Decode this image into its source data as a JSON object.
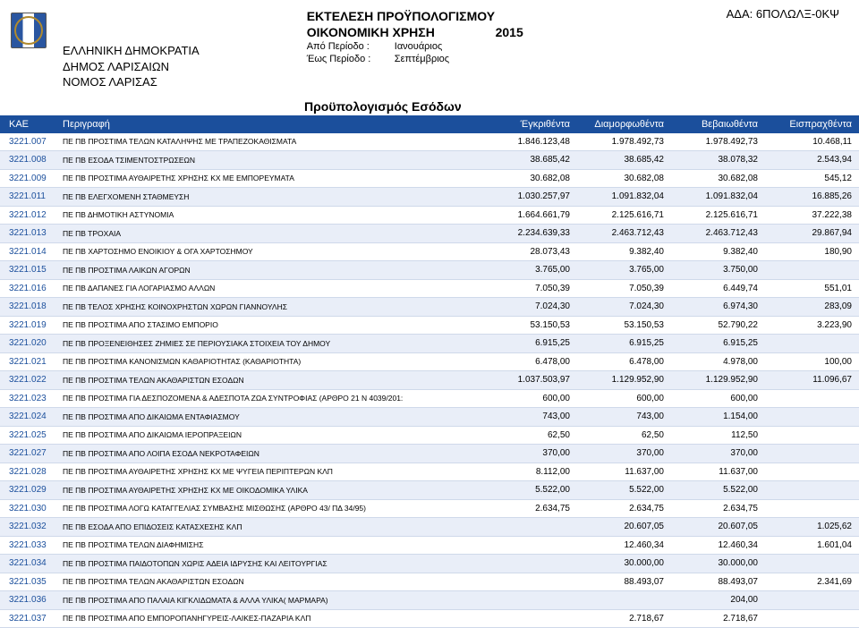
{
  "ada_label": "ΑΔΑ: 6ΠΟΛΩΛΞ-0ΚΨ",
  "gov": {
    "line1": "ΕΛΛΗΝΙΚΗ ΔΗΜΟΚΡΑΤΙΑ",
    "line2": "ΔΗΜΟΣ ΛΑΡΙΣΑΙΩΝ",
    "line3": "ΝΟΜΟΣ ΛΑΡΙΣΑΣ"
  },
  "titles": {
    "t1": "ΕΚΤΕΛΕΣΗ ΠΡΟΫΠΟΛΟΓΙΣΜΟΥ",
    "t2_a": "ΟΙΚΟΝΟΜΙΚΗ ΧΡΗΣΗ",
    "t2_b": "2015",
    "from_lbl": "Από Περίοδο :",
    "from_val": "Ιανουάριος",
    "to_lbl": "Έως Περίοδο :",
    "to_val": "Σεπτέμβριος",
    "section": "Προϋπολογισμός Εσόδων"
  },
  "columns": {
    "c1": "ΚΑΕ",
    "c2": "Περιγραφή",
    "c3": "Έγκριθέντα",
    "c4": "Διαμορφωθέντα",
    "c5": "Βεβαιωθέντα",
    "c6": "Εισπραχθέντα"
  },
  "rows": [
    {
      "kae": "3221.007",
      "desc": "ΠΕ ΠΒ ΠΡΟΣΤΙΜΑ ΤΕΛΩΝ ΚΑΤΑΛΗΨΗΣ ΜΕ ΤΡΑΠΕΖΟΚΑΘΙΣΜΑΤΑ",
      "v": [
        "1.846.123,48",
        "1.978.492,73",
        "1.978.492,73",
        "10.468,11"
      ]
    },
    {
      "kae": "3221.008",
      "desc": "ΠΕ ΠΒ ΕΣΟΔΑ ΤΣΙΜΕΝΤΟΣΤΡΩΣΕΩΝ",
      "v": [
        "38.685,42",
        "38.685,42",
        "38.078,32",
        "2.543,94"
      ]
    },
    {
      "kae": "3221.009",
      "desc": "ΠΕ ΠΒ ΠΡΟΣΤΙΜΑ ΑΥΘΑΙΡΕΤΗΣ ΧΡΗΣΗΣ ΚΧ ΜΕ ΕΜΠΟΡΕΥΜΑΤΑ",
      "v": [
        "30.682,08",
        "30.682,08",
        "30.682,08",
        "545,12"
      ]
    },
    {
      "kae": "3221.011",
      "desc": "ΠΕ ΠΒ ΕΛΕΓΧΟΜΕΝΗ ΣΤΑΘΜΕΥΣΗ",
      "v": [
        "1.030.257,97",
        "1.091.832,04",
        "1.091.832,04",
        "16.885,26"
      ]
    },
    {
      "kae": "3221.012",
      "desc": "ΠΕ ΠΒ ΔΗΜΟΤΙΚΗ ΑΣΤΥΝΟΜΙΑ",
      "v": [
        "1.664.661,79",
        "2.125.616,71",
        "2.125.616,71",
        "37.222,38"
      ]
    },
    {
      "kae": "3221.013",
      "desc": "ΠΕ ΠΒ ΤΡΟΧΑΙΑ",
      "v": [
        "2.234.639,33",
        "2.463.712,43",
        "2.463.712,43",
        "29.867,94"
      ]
    },
    {
      "kae": "3221.014",
      "desc": "ΠΕ ΠΒ ΧΑΡΤΟΣΗΜΟ ΕΝΟΙΚΙΟΥ & ΟΓΑ ΧΑΡΤΟΣΗΜΟΥ",
      "v": [
        "28.073,43",
        "9.382,40",
        "9.382,40",
        "180,90"
      ]
    },
    {
      "kae": "3221.015",
      "desc": "ΠΕ ΠΒ ΠΡΟΣΤΙΜΑ ΛΑΙΚΩΝ ΑΓΟΡΩΝ",
      "v": [
        "3.765,00",
        "3.765,00",
        "3.750,00",
        ""
      ]
    },
    {
      "kae": "3221.016",
      "desc": "ΠΕ ΠΒ ΔΑΠΑΝΕΣ ΓΙΑ ΛΟΓΑΡΙΑΣΜΟ ΑΛΛΩΝ",
      "v": [
        "7.050,39",
        "7.050,39",
        "6.449,74",
        "551,01"
      ]
    },
    {
      "kae": "3221.018",
      "desc": "ΠΕ ΠΒ ΤΕΛΟΣ ΧΡΗΣΗΣ ΚΟΙΝΟΧΡΗΣΤΩΝ ΧΩΡΩΝ ΓΙΑΝΝΟΥΛΗΣ",
      "v": [
        "7.024,30",
        "7.024,30",
        "6.974,30",
        "283,09"
      ]
    },
    {
      "kae": "3221.019",
      "desc": "ΠΕ ΠΒ ΠΡΟΣΤΙΜΑ ΑΠΟ ΣΤΑΣΙΜΟ ΕΜΠΟΡΙΟ",
      "v": [
        "53.150,53",
        "53.150,53",
        "52.790,22",
        "3.223,90"
      ]
    },
    {
      "kae": "3221.020",
      "desc": "ΠΕ ΠΒ ΠΡΟΞΕΝΕΙΘΗΣΕΣ ΖΗΜΙΕΣ ΣΕ ΠΕΡΙΟΥΣΙΑΚΑ ΣΤΟΙΧΕΙΑ ΤΟΥ ΔΗΜΟΥ",
      "v": [
        "6.915,25",
        "6.915,25",
        "6.915,25",
        ""
      ]
    },
    {
      "kae": "3221.021",
      "desc": "ΠΕ ΠΒ ΠΡΟΣΤΙΜΑ ΚΑΝΟΝΙΣΜΩΝ ΚΑΘΑΡΙΟΤΗΤΑΣ (ΚΑΘΑΡΙΟΤΗΤΑ)",
      "v": [
        "6.478,00",
        "6.478,00",
        "4.978,00",
        "100,00"
      ]
    },
    {
      "kae": "3221.022",
      "desc": "ΠΕ ΠΒ ΠΡΟΣΤΙΜΑ ΤΕΛΩΝ ΑΚΑΘΑΡΙΣΤΩΝ ΕΣΟΔΩΝ",
      "v": [
        "1.037.503,97",
        "1.129.952,90",
        "1.129.952,90",
        "11.096,67"
      ]
    },
    {
      "kae": "3221.023",
      "desc": "ΠΕ ΠΒ ΠΡΟΣΤΙΜΑ ΓΙΑ ΔΕΣΠΟΖΟΜΕΝΑ & ΑΔΕΣΠΟΤΑ ΖΩΑ ΣΥΝΤΡΟΦΙΑΣ (ΑΡΘΡΟ 21 Ν 4039/201:",
      "v": [
        "600,00",
        "600,00",
        "600,00",
        ""
      ]
    },
    {
      "kae": "3221.024",
      "desc": "ΠΕ ΠΒ ΠΡΟΣΤΙΜΑ ΑΠΟ ΔΙΚΑΙΩΜΑ ΕΝΤΑΦΙΑΣΜΟΥ",
      "v": [
        "743,00",
        "743,00",
        "1.154,00",
        ""
      ]
    },
    {
      "kae": "3221.025",
      "desc": "ΠΕ ΠΒ ΠΡΟΣΤΙΜΑ ΑΠΟ ΔΙΚΑΙΩΜΑ ΙΕΡΟΠΡΑΞΕΙΩΝ",
      "v": [
        "62,50",
        "62,50",
        "112,50",
        ""
      ]
    },
    {
      "kae": "3221.027",
      "desc": "ΠΕ ΠΒ ΠΡΟΣΤΙΜΑ ΑΠΟ ΛΟΙΠΑ ΕΣΟΔΑ ΝΕΚΡΟΤΑΦΕΙΩΝ",
      "v": [
        "370,00",
        "370,00",
        "370,00",
        ""
      ]
    },
    {
      "kae": "3221.028",
      "desc": "ΠΕ ΠΒ ΠΡΟΣΤΙΜΑ ΑΥΘΑΙΡΕΤΗΣ ΧΡΗΣΗΣ ΚΧ ΜΕ ΨΥΓΕΙΑ ΠΕΡΙΠΤΕΡΩΝ ΚΛΠ",
      "v": [
        "8.112,00",
        "11.637,00",
        "11.637,00",
        ""
      ]
    },
    {
      "kae": "3221.029",
      "desc": "ΠΕ ΠΒ ΠΡΟΣΤΙΜΑ ΑΥΘΑΙΡΕΤΗΣ ΧΡΗΣΗΣ ΚΧ ΜΕ ΟΙΚΟΔΟΜΙΚΑ ΥΛΙΚΑ",
      "v": [
        "5.522,00",
        "5.522,00",
        "5.522,00",
        ""
      ]
    },
    {
      "kae": "3221.030",
      "desc": "ΠΕ ΠΒ ΠΡΟΣΤΙΜΑ ΛΟΓΩ ΚΑΤΑΓΓΕΛΙΑΣ ΣΥΜΒΑΣΗΣ ΜΙΣΘΩΣΗΣ (ΑΡΘΡΟ 43/ ΠΔ 34/95)",
      "v": [
        "2.634,75",
        "2.634,75",
        "2.634,75",
        ""
      ]
    },
    {
      "kae": "3221.032",
      "desc": "ΠΕ ΠΒ ΕΣΟΔΑ ΑΠΟ ΕΠΙΔΟΣΕΙΣ ΚΑΤΑΣΧΕΣΗΣ ΚΛΠ",
      "v": [
        "",
        "20.607,05",
        "20.607,05",
        "1.025,62"
      ]
    },
    {
      "kae": "3221.033",
      "desc": "ΠΕ ΠΒ ΠΡΟΣΤΙΜΑ ΤΕΛΩΝ ΔΙΑΦΗΜΙΣΗΣ",
      "v": [
        "",
        "12.460,34",
        "12.460,34",
        "1.601,04"
      ]
    },
    {
      "kae": "3221.034",
      "desc": "ΠΕ ΠΒ ΠΡΟΣΤΙΜΑ ΠΑΙΔΟΤΟΠΩΝ ΧΩΡΙΣ ΑΔΕΙΑ ΙΔΡΥΣΗΣ ΚΑΙ ΛΕΙΤΟΥΡΓΙΑΣ",
      "v": [
        "",
        "30.000,00",
        "30.000,00",
        ""
      ]
    },
    {
      "kae": "3221.035",
      "desc": "ΠΕ ΠΒ ΠΡΟΣΤΙΜΑ ΤΕΛΩΝ ΑΚΑΘΑΡΙΣΤΩΝ ΕΣΟΔΩΝ",
      "v": [
        "",
        "88.493,07",
        "88.493,07",
        "2.341,69"
      ]
    },
    {
      "kae": "3221.036",
      "desc": "ΠΕ ΠΒ ΠΡΟΣΤΙΜΑ ΑΠΟ ΠΑΛΑΙΑ ΚΙΓΚΛΙΔΩΜΑΤΑ & ΑΛΛΑ ΥΛΙΚΑ( ΜΑΡΜΑΡΑ)",
      "v": [
        "",
        "",
        "204,00",
        ""
      ]
    },
    {
      "kae": "3221.037",
      "desc": "ΠΕ ΠΒ ΠΡΟΣΤΙΜΑ ΑΠΟ ΕΜΠΟΡΟΠΑΝΗΓΥΡΕΙΣ-ΛΑΙΚΕΣ-ΠΑΖΑΡΙΑ ΚΛΠ",
      "v": [
        "",
        "2.718,67",
        "2.718,67",
        ""
      ]
    }
  ]
}
